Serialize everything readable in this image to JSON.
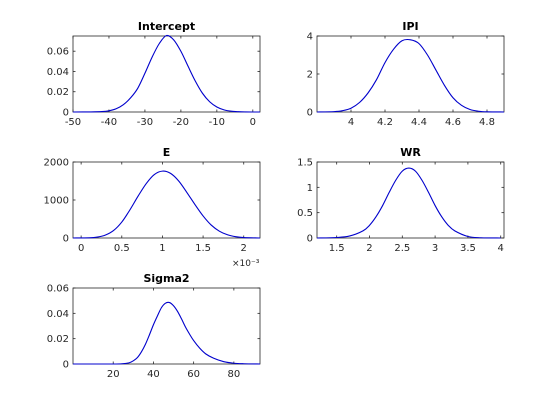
{
  "chart_data": [
    {
      "type": "line",
      "title": "Intercept",
      "xlim": [
        -50,
        2
      ],
      "ylim": [
        0,
        0.075
      ],
      "xticks": [
        -50,
        -40,
        -30,
        -20,
        -10,
        0
      ],
      "xtick_labels": [
        "-50",
        "-40",
        "-30",
        "-20",
        "-10",
        "0"
      ],
      "yticks": [
        0,
        0.02,
        0.04,
        0.06
      ],
      "ytick_labels": [
        "0",
        "0.02",
        "0.04",
        "0.06"
      ],
      "x_multiplier": "",
      "color": "#0000cc",
      "series": [
        {
          "x": [
            -50,
            -45,
            -42,
            -40,
            -38,
            -36,
            -34,
            -32,
            -30,
            -28,
            -26,
            -24,
            -22,
            -20,
            -18,
            -16,
            -14,
            -12,
            -10,
            -8,
            -6,
            -4,
            -2,
            0,
            2
          ],
          "y": [
            0,
            0.0001,
            0.0004,
            0.0012,
            0.0032,
            0.0072,
            0.0139,
            0.0234,
            0.0382,
            0.0542,
            0.0676,
            0.0755,
            0.0712,
            0.0599,
            0.0451,
            0.0306,
            0.0185,
            0.0101,
            0.0049,
            0.0021,
            0.0008,
            0.0003,
            0.0001,
            0,
            0
          ]
        }
      ]
    },
    {
      "type": "line",
      "title": "IPI",
      "xlim": [
        3.8,
        4.9
      ],
      "ylim": [
        0,
        4
      ],
      "xticks": [
        4,
        4.2,
        4.4,
        4.6,
        4.8
      ],
      "xtick_labels": [
        "4",
        "4.2",
        "4.4",
        "4.6",
        "4.8"
      ],
      "yticks": [
        0,
        2,
        4
      ],
      "ytick_labels": [
        "0",
        "2",
        "4"
      ],
      "x_multiplier": "",
      "color": "#0000cc",
      "series": [
        {
          "x": [
            3.8,
            3.9,
            3.95,
            4.0,
            4.05,
            4.1,
            4.15,
            4.2,
            4.25,
            4.3,
            4.35,
            4.4,
            4.45,
            4.5,
            4.55,
            4.6,
            4.65,
            4.7,
            4.75,
            4.8,
            4.9
          ],
          "y": [
            0,
            0.02,
            0.07,
            0.2,
            0.5,
            1.0,
            1.7,
            2.6,
            3.3,
            3.75,
            3.8,
            3.6,
            3.0,
            2.2,
            1.4,
            0.75,
            0.35,
            0.13,
            0.04,
            0.01,
            0
          ]
        }
      ]
    },
    {
      "type": "line",
      "title": "E",
      "xlim": [
        -0.0001,
        0.0022
      ],
      "ylim": [
        0,
        2000
      ],
      "xticks": [
        0,
        0.0005,
        0.001,
        0.0015,
        0.002
      ],
      "xtick_labels": [
        "0",
        "0.5",
        "1",
        "1.5",
        "2"
      ],
      "yticks": [
        0,
        1000,
        2000
      ],
      "ytick_labels": [
        "0",
        "1000",
        "2000"
      ],
      "x_multiplier": "×10⁻³",
      "color": "#0000cc",
      "series": [
        {
          "x": [
            -0.0001,
            0.0001,
            0.0002,
            0.0003,
            0.0004,
            0.0005,
            0.0006,
            0.0007,
            0.0008,
            0.0009,
            0.001,
            0.0011,
            0.0012,
            0.0013,
            0.0014,
            0.0015,
            0.0016,
            0.0017,
            0.0018,
            0.0019,
            0.002,
            0.0022
          ],
          "y": [
            0,
            5,
            25,
            80,
            200,
            420,
            740,
            1100,
            1430,
            1670,
            1760,
            1700,
            1500,
            1200,
            880,
            580,
            340,
            180,
            85,
            35,
            12,
            0
          ]
        }
      ]
    },
    {
      "type": "line",
      "title": "WR",
      "xlim": [
        1.2,
        4.05
      ],
      "ylim": [
        0,
        1.5
      ],
      "xticks": [
        1.5,
        2,
        2.5,
        3,
        3.5,
        4
      ],
      "xtick_labels": [
        "1.5",
        "2",
        "2.5",
        "3",
        "3.5",
        "4"
      ],
      "yticks": [
        0,
        0.5,
        1,
        1.5
      ],
      "ytick_labels": [
        "0",
        "0.5",
        "1",
        "1.5"
      ],
      "x_multiplier": "",
      "color": "#0000cc",
      "series": [
        {
          "x": [
            1.2,
            1.5,
            1.7,
            1.9,
            2.0,
            2.1,
            2.2,
            2.3,
            2.4,
            2.5,
            2.6,
            2.7,
            2.8,
            2.9,
            3.0,
            3.1,
            3.2,
            3.3,
            3.5,
            3.7,
            4.0
          ],
          "y": [
            0,
            0.01,
            0.04,
            0.14,
            0.25,
            0.42,
            0.64,
            0.9,
            1.14,
            1.32,
            1.38,
            1.32,
            1.14,
            0.9,
            0.64,
            0.42,
            0.25,
            0.14,
            0.03,
            0.005,
            0
          ]
        }
      ]
    },
    {
      "type": "line",
      "title": "Sigma2",
      "xlim": [
        0,
        93
      ],
      "ylim": [
        0,
        0.06
      ],
      "xticks": [
        20,
        40,
        60,
        80
      ],
      "xtick_labels": [
        "20",
        "40",
        "60",
        "80"
      ],
      "yticks": [
        0,
        0.02,
        0.04,
        0.06
      ],
      "ytick_labels": [
        "0",
        "0.02",
        "0.04",
        "0.06"
      ],
      "x_multiplier": "",
      "color": "#0000cc",
      "series": [
        {
          "x": [
            0,
            20,
            25,
            28,
            30,
            32,
            34,
            36,
            38,
            40,
            42,
            44,
            46,
            48,
            50,
            52,
            54,
            56,
            58,
            60,
            63,
            66,
            70,
            75,
            80,
            85,
            93
          ],
          "y": [
            0,
            0,
            0.0003,
            0.001,
            0.0025,
            0.005,
            0.0095,
            0.0155,
            0.023,
            0.031,
            0.038,
            0.0445,
            0.048,
            0.0485,
            0.046,
            0.0415,
            0.0355,
            0.029,
            0.0235,
            0.0185,
            0.0125,
            0.008,
            0.0045,
            0.0018,
            0.0006,
            0.0002,
            0
          ]
        }
      ]
    }
  ]
}
